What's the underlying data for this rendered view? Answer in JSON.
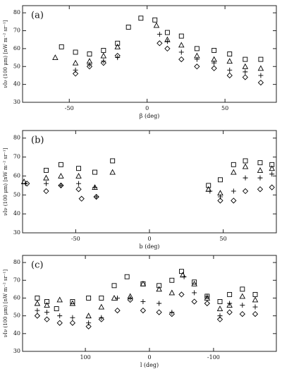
{
  "chart_data": [
    {
      "type": "scatter",
      "panel_label": "(a)",
      "x_label": "β (deg)",
      "y_label": "νIν (100 μm)  [nW m⁻² sr⁻¹]",
      "xlim": [
        -80,
        83
      ],
      "ylim": [
        30,
        84
      ],
      "xticks": [
        -50,
        0,
        50
      ],
      "yticks": [
        30,
        40,
        50,
        60,
        70,
        80
      ],
      "series": [
        {
          "marker": "square",
          "color": "#000000",
          "x": [
            -55,
            -46,
            -37,
            -28,
            -19,
            -12,
            -4,
            5,
            13,
            22,
            32,
            43,
            53,
            63,
            73
          ],
          "values": [
            61,
            58,
            57,
            59,
            63,
            72,
            77,
            76,
            69,
            67,
            60,
            59,
            57,
            54,
            54
          ]
        },
        {
          "marker": "triangle",
          "color": "#000000",
          "x": [
            -59,
            -46,
            -37,
            -28,
            -19,
            6,
            13,
            22,
            32,
            43,
            53,
            63,
            73
          ],
          "values": [
            55,
            52,
            53,
            56,
            61,
            73,
            65,
            62,
            56,
            54,
            53,
            50,
            49
          ]
        },
        {
          "marker": "plus",
          "color": "#000000",
          "x": [
            -46,
            -37,
            -28,
            -19,
            8,
            13,
            22,
            32,
            43,
            53,
            63,
            73
          ],
          "values": [
            48,
            51,
            53,
            55,
            68,
            64,
            58,
            54,
            52,
            48,
            47,
            45
          ]
        },
        {
          "marker": "diamond",
          "color": "#000000",
          "x": [
            -46,
            -37,
            -28,
            -19,
            8,
            13,
            22,
            32,
            43,
            53,
            63,
            73
          ],
          "values": [
            46,
            50,
            52,
            56,
            63,
            60,
            54,
            50,
            49,
            45,
            44,
            41
          ]
        }
      ]
    },
    {
      "type": "scatter",
      "panel_label": "(b)",
      "x_label": "b (deg)",
      "y_label": "νIν (100 μm)  [nW m⁻² sr⁻¹]",
      "xlim": [
        -86,
        86
      ],
      "ylim": [
        30,
        84
      ],
      "xticks": [
        -50,
        0,
        50
      ],
      "yticks": [
        30,
        40,
        50,
        60,
        70,
        80
      ],
      "series": [
        {
          "marker": "square",
          "color": "#000000",
          "x": [
            -70,
            -60,
            -48,
            -37,
            -25,
            40,
            48,
            57,
            65,
            75,
            83
          ],
          "values": [
            63,
            66,
            64,
            62,
            68,
            55,
            58,
            66,
            68,
            67,
            66
          ]
        },
        {
          "marker": "triangle",
          "color": "#000000",
          "x": [
            -85,
            -70,
            -60,
            -48,
            -37,
            -25,
            40,
            48,
            57,
            65,
            75,
            83
          ],
          "values": [
            57,
            59,
            60,
            60,
            54,
            62,
            53,
            51,
            62,
            65,
            63,
            64
          ]
        },
        {
          "marker": "plus",
          "color": "#000000",
          "x": [
            -84,
            -70,
            -60,
            -48,
            -37,
            -36,
            41,
            48,
            57,
            65,
            75,
            83
          ],
          "values": [
            56,
            56,
            55,
            56,
            54,
            49,
            52,
            49,
            52,
            59,
            59,
            61
          ]
        },
        {
          "marker": "diamond",
          "color": "#000000",
          "x": [
            -83,
            -70,
            -60,
            -48,
            -46,
            -36,
            48,
            57,
            65,
            75,
            83
          ],
          "values": [
            56,
            52,
            55,
            53,
            48,
            49,
            47,
            47,
            52,
            53,
            54
          ]
        }
      ]
    },
    {
      "type": "scatter",
      "panel_label": "(c)",
      "x_label": "l (deg)",
      "y_label": "νIν (100 μm)  [nW m⁻² sr⁻¹]",
      "xlim": [
        198,
        -198
      ],
      "ylim": [
        30,
        84
      ],
      "xticks": [
        100,
        0,
        -100
      ],
      "yticks": [
        30,
        40,
        50,
        60,
        70,
        80
      ],
      "series": [
        {
          "marker": "square",
          "color": "#000000",
          "x": [
            175,
            160,
            145,
            120,
            95,
            75,
            55,
            35,
            10,
            -15,
            -35,
            -50,
            -70,
            -90,
            -110,
            -125,
            -145,
            -165
          ],
          "values": [
            60,
            58,
            54,
            58,
            60,
            60,
            67,
            72,
            68,
            67,
            70,
            75,
            69,
            61,
            58,
            62,
            65,
            62
          ]
        },
        {
          "marker": "triangle",
          "color": "#000000",
          "x": [
            175,
            160,
            140,
            120,
            95,
            75,
            55,
            30,
            10,
            -15,
            -35,
            -52,
            -70,
            -90,
            -110,
            -125,
            -145,
            -165
          ],
          "values": [
            57,
            56,
            59,
            57,
            50,
            55,
            60,
            61,
            68,
            65,
            63,
            73,
            68,
            60,
            54,
            56,
            61,
            59
          ]
        },
        {
          "marker": "plus",
          "color": "#000000",
          "x": [
            175,
            160,
            140,
            120,
            95,
            75,
            50,
            30,
            10,
            -15,
            -35,
            -54,
            -70,
            -90,
            -110,
            -125,
            -145,
            -165
          ],
          "values": [
            53,
            52,
            50,
            49,
            46,
            49,
            60,
            60,
            58,
            57,
            52,
            72,
            63,
            61,
            50,
            57,
            56,
            55
          ]
        },
        {
          "marker": "diamond",
          "color": "#000000",
          "x": [
            175,
            160,
            140,
            120,
            95,
            75,
            50,
            30,
            10,
            -15,
            -35,
            -50,
            -70,
            -90,
            -110,
            -125,
            -145,
            -165
          ],
          "values": [
            50,
            48,
            46,
            46,
            44,
            48,
            53,
            59,
            53,
            52,
            51,
            62,
            58,
            57,
            48,
            52,
            51,
            51
          ]
        }
      ]
    }
  ]
}
